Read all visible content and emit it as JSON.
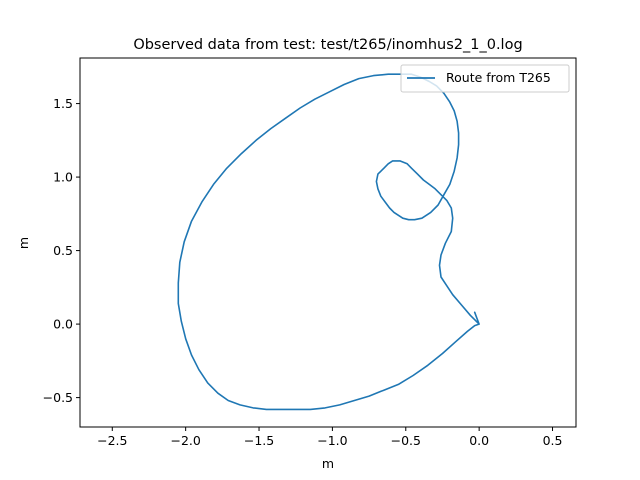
{
  "chart_data": {
    "type": "line",
    "title": "Observed data from test: test/t265/inomhus2_1_0.log",
    "xlabel": "m",
    "ylabel": "m",
    "xlim": [
      -2.72,
      0.66
    ],
    "ylim": [
      -0.7,
      1.81
    ],
    "grid": false,
    "legend_position": "top-right",
    "x_ticks": [
      -2.5,
      -2.0,
      -1.5,
      -1.0,
      -0.5,
      0.0,
      0.5
    ],
    "x_tick_labels": [
      "−2.5",
      "−2.0",
      "−1.5",
      "−1.0",
      "−0.5",
      "0.0",
      "0.5"
    ],
    "y_ticks": [
      -0.5,
      0.0,
      0.5,
      1.0,
      1.5
    ],
    "y_tick_labels": [
      "−0.5",
      "0.0",
      "0.5",
      "1.0",
      "1.5"
    ],
    "series": [
      {
        "name": "Route from T265",
        "color": "#1f77b4",
        "x": [
          0.0,
          -0.06,
          -0.12,
          -0.18,
          -0.22,
          -0.26,
          -0.27,
          -0.26,
          -0.23,
          -0.19,
          -0.18,
          -0.19,
          -0.22,
          -0.26,
          -0.3,
          -0.34,
          -0.38,
          -0.42,
          -0.46,
          -0.49,
          -0.54,
          -0.59,
          -0.62,
          -0.65,
          -0.69,
          -0.7,
          -0.69,
          -0.67,
          -0.64,
          -0.61,
          -0.58,
          -0.55,
          -0.52,
          -0.48,
          -0.44,
          -0.39,
          -0.33,
          -0.28,
          -0.24,
          -0.2,
          -0.17,
          -0.15,
          -0.14,
          -0.14,
          -0.15,
          -0.17,
          -0.2,
          -0.24,
          -0.29,
          -0.34,
          -0.4,
          -0.46,
          -0.54,
          -0.62,
          -0.72,
          -0.82,
          -0.92,
          -1.02,
          -1.12,
          -1.22,
          -1.32,
          -1.42,
          -1.52,
          -1.62,
          -1.72,
          -1.81,
          -1.89,
          -1.96,
          -2.01,
          -2.04,
          -2.05,
          -2.05,
          -2.03,
          -2.0,
          -1.96,
          -1.91,
          -1.85,
          -1.78,
          -1.71,
          -1.63,
          -1.54,
          -1.45,
          -1.35,
          -1.25,
          -1.15,
          -1.05,
          -0.95,
          -0.85,
          -0.75,
          -0.65,
          -0.55,
          -0.45,
          -0.35,
          -0.25,
          -0.16,
          -0.08,
          -0.03,
          0.0,
          -0.03
        ],
        "y": [
          0.0,
          0.06,
          0.13,
          0.2,
          0.26,
          0.32,
          0.4,
          0.47,
          0.55,
          0.63,
          0.72,
          0.79,
          0.84,
          0.88,
          0.92,
          0.95,
          0.98,
          1.02,
          1.06,
          1.09,
          1.11,
          1.11,
          1.09,
          1.06,
          1.02,
          0.97,
          0.92,
          0.87,
          0.83,
          0.79,
          0.76,
          0.74,
          0.72,
          0.71,
          0.71,
          0.72,
          0.76,
          0.81,
          0.88,
          0.95,
          1.04,
          1.13,
          1.22,
          1.3,
          1.38,
          1.45,
          1.51,
          1.57,
          1.62,
          1.65,
          1.68,
          1.7,
          1.7,
          1.7,
          1.69,
          1.67,
          1.63,
          1.58,
          1.53,
          1.47,
          1.4,
          1.33,
          1.25,
          1.16,
          1.06,
          0.95,
          0.83,
          0.7,
          0.56,
          0.42,
          0.28,
          0.14,
          0.02,
          -0.1,
          -0.21,
          -0.31,
          -0.4,
          -0.47,
          -0.52,
          -0.55,
          -0.57,
          -0.58,
          -0.58,
          -0.58,
          -0.58,
          -0.57,
          -0.55,
          -0.52,
          -0.49,
          -0.45,
          -0.41,
          -0.35,
          -0.28,
          -0.2,
          -0.12,
          -0.05,
          -0.01,
          0.0,
          0.08
        ]
      }
    ]
  }
}
